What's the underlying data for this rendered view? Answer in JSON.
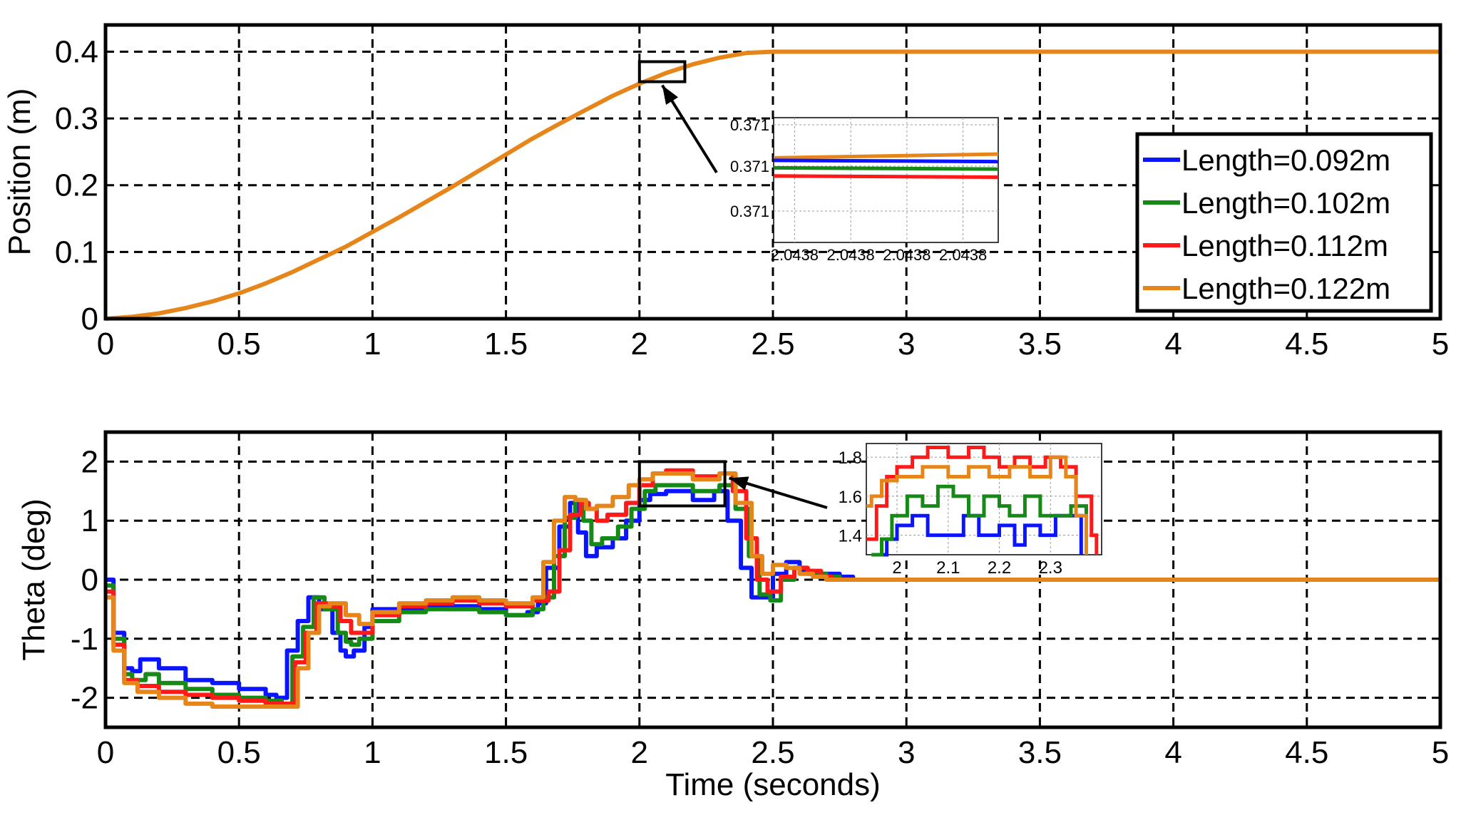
{
  "colors": {
    "Length=0.092m": "#0a14ff",
    "Length=0.102m": "#168a16",
    "Length=0.112m": "#ff1a1a",
    "Length=0.122m": "#e6861a",
    "axes": "#000000",
    "grid": "#000000"
  },
  "chart_data": [
    {
      "type": "line",
      "title": "",
      "xlabel": "",
      "ylabel": "Position (m)",
      "xlim": [
        0,
        5
      ],
      "ylim": [
        0,
        0.44
      ],
      "xticks": [
        0,
        0.5,
        1,
        1.5,
        2,
        2.5,
        3,
        3.5,
        4,
        4.5,
        5
      ],
      "xtick_labels": [
        "0",
        "0.5",
        "1",
        "1.5",
        "2",
        "2.5",
        "3",
        "3.5",
        "4",
        "4.5",
        "5"
      ],
      "yticks": [
        0,
        0.1,
        0.2,
        0.3,
        0.4
      ],
      "ytick_labels": [
        "0",
        "0.1",
        "0.2",
        "0.3",
        "0.4"
      ],
      "grid": true,
      "legend": {
        "placement": "right",
        "entries": [
          "Length=0.092m",
          "Length=0.102m",
          "Length=0.112m",
          "Length=0.122m"
        ]
      },
      "series": [
        {
          "name": "Length=0.122m",
          "x": [
            0,
            0.1,
            0.2,
            0.3,
            0.4,
            0.5,
            0.6,
            0.7,
            0.8,
            0.9,
            1.0,
            1.1,
            1.2,
            1.3,
            1.4,
            1.5,
            1.6,
            1.7,
            1.8,
            1.9,
            2.0,
            2.1,
            2.2,
            2.3,
            2.4,
            2.5,
            2.6,
            3.0,
            3.5,
            4.0,
            4.5,
            5.0
          ],
          "y": [
            0,
            0.003,
            0.008,
            0.016,
            0.026,
            0.038,
            0.053,
            0.07,
            0.089,
            0.108,
            0.13,
            0.152,
            0.175,
            0.198,
            0.222,
            0.246,
            0.27,
            0.292,
            0.313,
            0.334,
            0.352,
            0.368,
            0.381,
            0.391,
            0.398,
            0.4,
            0.4,
            0.4,
            0.4,
            0.4,
            0.4,
            0.4
          ]
        }
      ],
      "zoom_box": {
        "x": [
          2.0,
          2.17
        ],
        "y": [
          0.355,
          0.385
        ]
      },
      "inset": {
        "xtick_labels": [
          "2.0438",
          "2.0438",
          "2.0438",
          "2.0438"
        ],
        "ytick_labels": [
          "0.371",
          "0.371",
          "0.371"
        ],
        "levels": [
          {
            "series": "Length=0.122m",
            "y_start": 0.53,
            "y_end": 0.47
          },
          {
            "series": "Length=0.092m",
            "y_start": 0.57,
            "y_end": 0.59
          },
          {
            "series": "Length=0.102m",
            "y_start": 0.69,
            "y_end": 0.71
          },
          {
            "series": "Length=0.112m",
            "y_start": 0.82,
            "y_end": 0.84
          }
        ]
      }
    },
    {
      "type": "line",
      "title": "",
      "xlabel": "Time (seconds)",
      "ylabel": "Theta (deg)",
      "xlim": [
        0,
        5
      ],
      "ylim": [
        -2.5,
        2.5
      ],
      "xticks": [
        0,
        0.5,
        1,
        1.5,
        2,
        2.5,
        3,
        3.5,
        4,
        4.5,
        5
      ],
      "xtick_labels": [
        "0",
        "0.5",
        "1",
        "1.5",
        "2",
        "2.5",
        "3",
        "3.5",
        "4",
        "4.5",
        "5"
      ],
      "yticks": [
        -2,
        -1,
        0,
        1,
        2
      ],
      "ytick_labels": [
        "-2",
        "-1",
        "0",
        "1",
        "2"
      ],
      "grid": true,
      "series": [
        {
          "name": "Length=0.092m",
          "x": [
            0,
            0.03,
            0.07,
            0.1,
            0.13,
            0.2,
            0.3,
            0.4,
            0.5,
            0.6,
            0.64,
            0.68,
            0.72,
            0.76,
            0.8,
            0.85,
            0.88,
            0.9,
            0.93,
            0.97,
            1.0,
            1.1,
            1.2,
            1.3,
            1.4,
            1.5,
            1.58,
            1.62,
            1.65,
            1.7,
            1.74,
            1.77,
            1.8,
            1.84,
            1.9,
            1.95,
            2.0,
            2.04,
            2.1,
            2.2,
            2.28,
            2.33,
            2.38,
            2.42,
            2.46,
            2.5,
            2.55,
            2.6,
            2.65,
            2.7,
            2.75,
            2.8,
            5.0
          ],
          "y": [
            0,
            -0.9,
            -1.5,
            -1.55,
            -1.35,
            -1.5,
            -1.7,
            -1.75,
            -1.85,
            -1.95,
            -2.0,
            -1.2,
            -0.7,
            -0.3,
            -0.5,
            -0.9,
            -1.2,
            -1.3,
            -1.2,
            -0.8,
            -0.5,
            -0.5,
            -0.45,
            -0.45,
            -0.5,
            -0.6,
            -0.55,
            -0.4,
            0.2,
            0.9,
            1.3,
            0.8,
            0.4,
            0.55,
            0.7,
            1.0,
            1.35,
            1.45,
            1.5,
            1.35,
            1.5,
            1.0,
            0.2,
            -0.3,
            -0.3,
            0.1,
            0.3,
            0.15,
            0.1,
            0.1,
            0.05,
            0,
            0
          ]
        },
        {
          "name": "Length=0.102m",
          "x": [
            0,
            0.03,
            0.07,
            0.1,
            0.15,
            0.2,
            0.3,
            0.4,
            0.5,
            0.6,
            0.66,
            0.7,
            0.74,
            0.78,
            0.82,
            0.87,
            0.9,
            0.92,
            0.95,
            1.0,
            1.1,
            1.2,
            1.3,
            1.4,
            1.5,
            1.6,
            1.64,
            1.68,
            1.72,
            1.76,
            1.79,
            1.82,
            1.86,
            1.92,
            1.97,
            2.02,
            2.06,
            2.12,
            2.2,
            2.3,
            2.36,
            2.41,
            2.45,
            2.49,
            2.53,
            2.58,
            2.63,
            2.7,
            2.75,
            5.0
          ],
          "y": [
            -0.1,
            -1.0,
            -1.6,
            -1.7,
            -1.6,
            -1.75,
            -1.85,
            -1.95,
            -2.0,
            -2.05,
            -2.15,
            -1.3,
            -0.8,
            -0.3,
            -0.5,
            -0.9,
            -1.05,
            -1.1,
            -1.0,
            -0.7,
            -0.55,
            -0.5,
            -0.5,
            -0.55,
            -0.6,
            -0.5,
            -0.3,
            0.4,
            1.05,
            1.35,
            1.0,
            0.6,
            0.7,
            0.9,
            1.2,
            1.5,
            1.6,
            1.6,
            1.5,
            1.6,
            1.2,
            0.4,
            -0.25,
            -0.35,
            0.0,
            0.2,
            0.1,
            0.05,
            0,
            0
          ]
        },
        {
          "name": "Length=0.112m",
          "x": [
            0,
            0.03,
            0.07,
            0.12,
            0.2,
            0.3,
            0.4,
            0.5,
            0.6,
            0.67,
            0.71,
            0.75,
            0.79,
            0.83,
            0.88,
            0.92,
            0.96,
            1.0,
            1.1,
            1.2,
            1.3,
            1.4,
            1.5,
            1.6,
            1.66,
            1.7,
            1.74,
            1.78,
            1.81,
            1.84,
            1.88,
            1.95,
            2.0,
            2.05,
            2.1,
            2.2,
            2.3,
            2.35,
            2.4,
            2.44,
            2.48,
            2.53,
            2.58,
            2.63,
            2.68,
            2.72,
            5.0
          ],
          "y": [
            -0.2,
            -1.1,
            -1.7,
            -1.8,
            -1.9,
            -1.95,
            -2.0,
            -2.05,
            -2.1,
            -2.1,
            -1.4,
            -0.9,
            -0.4,
            -0.45,
            -0.7,
            -0.9,
            -0.9,
            -0.6,
            -0.45,
            -0.4,
            -0.35,
            -0.4,
            -0.45,
            -0.35,
            -0.2,
            0.5,
            1.1,
            1.3,
            1.2,
            1.0,
            1.1,
            1.3,
            1.6,
            1.8,
            1.85,
            1.75,
            1.8,
            1.5,
            0.7,
            0.0,
            -0.2,
            0.05,
            0.2,
            0.15,
            0.05,
            0,
            0
          ]
        },
        {
          "name": "Length=0.122m",
          "x": [
            0,
            0.03,
            0.07,
            0.12,
            0.2,
            0.3,
            0.4,
            0.5,
            0.6,
            0.68,
            0.72,
            0.76,
            0.8,
            0.84,
            0.9,
            0.95,
            1.0,
            1.1,
            1.2,
            1.3,
            1.4,
            1.5,
            1.6,
            1.64,
            1.68,
            1.72,
            1.76,
            1.8,
            1.84,
            1.9,
            1.96,
            2.0,
            2.05,
            2.1,
            2.2,
            2.3,
            2.36,
            2.42,
            2.46,
            2.5,
            2.55,
            2.6,
            2.65,
            2.7,
            5.0
          ],
          "y": [
            -0.3,
            -1.2,
            -1.75,
            -1.9,
            -2.0,
            -2.1,
            -2.15,
            -2.15,
            -2.15,
            -2.15,
            -1.5,
            -0.9,
            -0.45,
            -0.4,
            -0.6,
            -0.75,
            -0.55,
            -0.4,
            -0.35,
            -0.3,
            -0.35,
            -0.4,
            -0.3,
            0.3,
            1.0,
            1.4,
            1.35,
            1.2,
            1.25,
            1.4,
            1.6,
            1.7,
            1.8,
            1.8,
            1.7,
            1.8,
            1.3,
            0.4,
            0.1,
            0.25,
            0.2,
            0.1,
            0.05,
            0,
            0
          ]
        }
      ],
      "zoom_box": {
        "x": [
          2.0,
          2.32
        ],
        "y": [
          1.25,
          2.0
        ]
      },
      "inset": {
        "xticks": [
          2.0,
          2.1,
          2.2,
          2.3
        ],
        "xtick_labels": [
          "2",
          "2.1",
          "2.2",
          "2.3"
        ],
        "yticks": [
          1.4,
          1.6,
          1.8
        ],
        "ytick_labels": [
          "1.4",
          "1.6",
          "1.8"
        ],
        "xlim": [
          1.94,
          2.4
        ],
        "ylim": [
          1.3,
          1.87
        ],
        "series": [
          {
            "name": "Length=0.092m",
            "x": [
              1.96,
              1.98,
              2.0,
              2.03,
              2.06,
              2.09,
              2.13,
              2.16,
              2.2,
              2.23,
              2.25,
              2.28,
              2.31,
              2.34,
              2.36
            ],
            "y": [
              1.3,
              1.38,
              1.45,
              1.5,
              1.4,
              1.4,
              1.5,
              1.4,
              1.45,
              1.35,
              1.45,
              1.4,
              1.5,
              1.5,
              1.3
            ]
          },
          {
            "name": "Length=0.102m",
            "x": [
              1.95,
              1.97,
              1.99,
              2.02,
              2.05,
              2.08,
              2.11,
              2.14,
              2.17,
              2.2,
              2.22,
              2.25,
              2.28,
              2.31,
              2.34,
              2.37
            ],
            "y": [
              1.3,
              1.38,
              1.5,
              1.6,
              1.55,
              1.65,
              1.6,
              1.5,
              1.6,
              1.55,
              1.5,
              1.6,
              1.5,
              1.5,
              1.55,
              1.3
            ]
          },
          {
            "name": "Length=0.112m",
            "x": [
              1.94,
              1.96,
              1.98,
              2.0,
              2.03,
              2.06,
              2.1,
              2.14,
              2.17,
              2.2,
              2.23,
              2.26,
              2.29,
              2.32,
              2.35,
              2.38,
              2.39
            ],
            "y": [
              1.38,
              1.55,
              1.7,
              1.75,
              1.8,
              1.85,
              1.8,
              1.85,
              1.8,
              1.75,
              1.8,
              1.75,
              1.8,
              1.75,
              1.6,
              1.4,
              1.3
            ]
          },
          {
            "name": "Length=0.122m",
            "x": [
              1.94,
              1.95,
              1.97,
              2.0,
              2.05,
              2.1,
              2.14,
              2.18,
              2.22,
              2.26,
              2.3,
              2.33,
              2.35,
              2.37
            ],
            "y": [
              1.55,
              1.6,
              1.68,
              1.7,
              1.75,
              1.7,
              1.75,
              1.7,
              1.75,
              1.7,
              1.8,
              1.7,
              1.5,
              1.3
            ]
          }
        ]
      }
    }
  ]
}
